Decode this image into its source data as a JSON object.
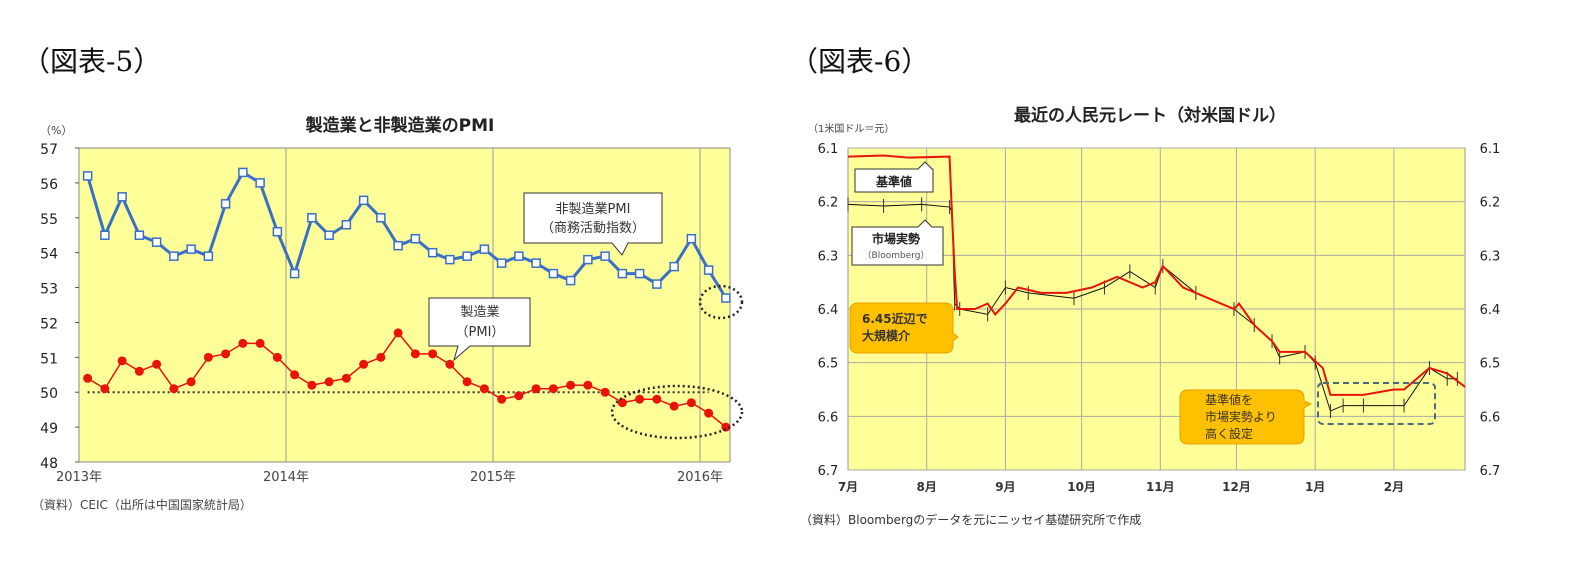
{
  "figures": [
    {
      "label": "（図表-5）"
    },
    {
      "label": "（図表-6）"
    }
  ],
  "chart_data": [
    {
      "type": "line",
      "title": "製造業と非製造業のPMI",
      "ylabel": "（%）",
      "source": "（資料）CEIC（出所は中国国家統計局）",
      "ylim": [
        48,
        57
      ],
      "yticks": [
        48,
        49,
        50,
        51,
        52,
        53,
        54,
        55,
        56,
        57
      ],
      "xticks": [
        "2013年",
        "2014年",
        "2015年",
        "2016年"
      ],
      "x_start": "2013-01",
      "grid": "vertical year lines",
      "background": "#FFFF99",
      "reference_line": 50,
      "series": [
        {
          "name": "非製造業PMI（商務活動指数）",
          "color": "#3A6FC8",
          "marker": "square",
          "values": [
            56.2,
            54.5,
            55.6,
            54.5,
            54.3,
            53.9,
            54.1,
            53.9,
            55.4,
            56.3,
            56.0,
            54.6,
            53.4,
            55.0,
            54.5,
            54.8,
            55.5,
            55.0,
            54.2,
            54.4,
            54.0,
            53.8,
            53.9,
            54.1,
            53.7,
            53.9,
            53.7,
            53.4,
            53.2,
            53.8,
            53.9,
            53.4,
            53.4,
            53.1,
            53.6,
            54.4,
            53.5,
            52.7
          ]
        },
        {
          "name": "製造業（PMI）",
          "color": "#E8140A",
          "marker": "circle",
          "values": [
            50.4,
            50.1,
            50.9,
            50.6,
            50.8,
            50.1,
            50.3,
            51.0,
            51.1,
            51.4,
            51.4,
            51.0,
            50.5,
            50.2,
            50.3,
            50.4,
            50.8,
            51.0,
            51.7,
            51.1,
            51.1,
            50.8,
            50.3,
            50.1,
            49.8,
            49.9,
            50.1,
            50.1,
            50.2,
            50.2,
            50.0,
            49.7,
            49.8,
            49.8,
            49.6,
            49.7,
            49.4,
            49.0
          ]
        }
      ],
      "callouts": [
        {
          "lines": [
            "非製造業PMI",
            "（商務活動指数）"
          ]
        },
        {
          "lines": [
            "製造業",
            "（PMI）"
          ]
        }
      ]
    },
    {
      "type": "line",
      "title": "最近の人民元レート（対米国ドル）",
      "ylabel": "（1米国ドル＝元）",
      "source": "（資料）Bloombergのデータを元にニッセイ基礎研究所で作成",
      "ylim": [
        6.7,
        6.1
      ],
      "y_inverted": true,
      "yticks": [
        "6.1",
        "6.2",
        "6.3",
        "6.4",
        "6.5",
        "6.6",
        "6.7"
      ],
      "xticks": [
        "7月",
        "8月",
        "9月",
        "10月",
        "11月",
        "12月",
        "1月",
        "2月"
      ],
      "grid": "both",
      "background": "#FFFF99",
      "series": [
        {
          "name": "基準値",
          "color": "#E8140A",
          "points": [
            [
              "2015-07-01",
              6.116
            ],
            [
              "2015-07-15",
              6.114
            ],
            [
              "2015-07-25",
              6.118
            ],
            [
              "2015-08-10",
              6.116
            ],
            [
              "2015-08-11",
              6.23
            ],
            [
              "2015-08-12",
              6.33
            ],
            [
              "2015-08-13",
              6.4
            ],
            [
              "2015-08-20",
              6.4
            ],
            [
              "2015-08-25",
              6.39
            ],
            [
              "2015-08-28",
              6.41
            ],
            [
              "2015-09-01",
              6.39
            ],
            [
              "2015-09-06",
              6.36
            ],
            [
              "2015-09-15",
              6.37
            ],
            [
              "2015-09-25",
              6.37
            ],
            [
              "2015-10-05",
              6.36
            ],
            [
              "2015-10-15",
              6.34
            ],
            [
              "2015-10-25",
              6.36
            ],
            [
              "2015-10-30",
              6.35
            ],
            [
              "2015-11-02",
              6.32
            ],
            [
              "2015-11-10",
              6.36
            ],
            [
              "2015-11-20",
              6.38
            ],
            [
              "2015-11-30",
              6.4
            ],
            [
              "2015-12-02",
              6.39
            ],
            [
              "2015-12-08",
              6.43
            ],
            [
              "2015-12-15",
              6.46
            ],
            [
              "2015-12-18",
              6.48
            ],
            [
              "2015-12-28",
              6.48
            ],
            [
              "2016-01-04",
              6.51
            ],
            [
              "2016-01-07",
              6.56
            ],
            [
              "2016-01-20",
              6.56
            ],
            [
              "2016-02-01",
              6.55
            ],
            [
              "2016-02-05",
              6.55
            ],
            [
              "2016-02-15",
              6.51
            ],
            [
              "2016-02-22",
              6.52
            ],
            [
              "2016-02-29",
              6.545
            ]
          ]
        },
        {
          "name": "市場実勢（Bloomberg）",
          "color": "#111111",
          "points": [
            [
              "2015-07-01",
              6.205
            ],
            [
              "2015-07-15",
              6.208
            ],
            [
              "2015-07-30",
              6.205
            ],
            [
              "2015-08-10",
              6.21
            ],
            [
              "2015-08-11",
              6.22
            ],
            [
              "2015-08-12",
              6.39
            ],
            [
              "2015-08-14",
              6.4
            ],
            [
              "2015-08-25",
              6.41
            ],
            [
              "2015-09-01",
              6.36
            ],
            [
              "2015-09-10",
              6.37
            ],
            [
              "2015-09-28",
              6.38
            ],
            [
              "2015-10-10",
              6.36
            ],
            [
              "2015-10-20",
              6.33
            ],
            [
              "2015-10-30",
              6.36
            ],
            [
              "2015-11-02",
              6.32
            ],
            [
              "2015-11-15",
              6.37
            ],
            [
              "2015-11-30",
              6.4
            ],
            [
              "2015-12-08",
              6.43
            ],
            [
              "2015-12-15",
              6.46
            ],
            [
              "2015-12-18",
              6.49
            ],
            [
              "2015-12-28",
              6.48
            ],
            [
              "2016-01-01",
              6.5
            ],
            [
              "2016-01-07",
              6.59
            ],
            [
              "2016-01-12",
              6.58
            ],
            [
              "2016-01-20",
              6.58
            ],
            [
              "2016-02-05",
              6.58
            ],
            [
              "2016-02-15",
              6.51
            ],
            [
              "2016-02-22",
              6.53
            ],
            [
              "2016-02-26",
              6.53
            ]
          ]
        }
      ],
      "callouts": [
        {
          "lines": [
            "基準値"
          ]
        },
        {
          "lines": [
            "市場実勢",
            "（Bloomberg）"
          ]
        },
        {
          "lines": [
            "6.45近辺で",
            "大規模介"
          ],
          "color": "#FFC000"
        },
        {
          "lines": [
            "基準値を",
            "市場実勢より",
            "高く設定"
          ],
          "color": "#FFC000"
        }
      ]
    }
  ]
}
